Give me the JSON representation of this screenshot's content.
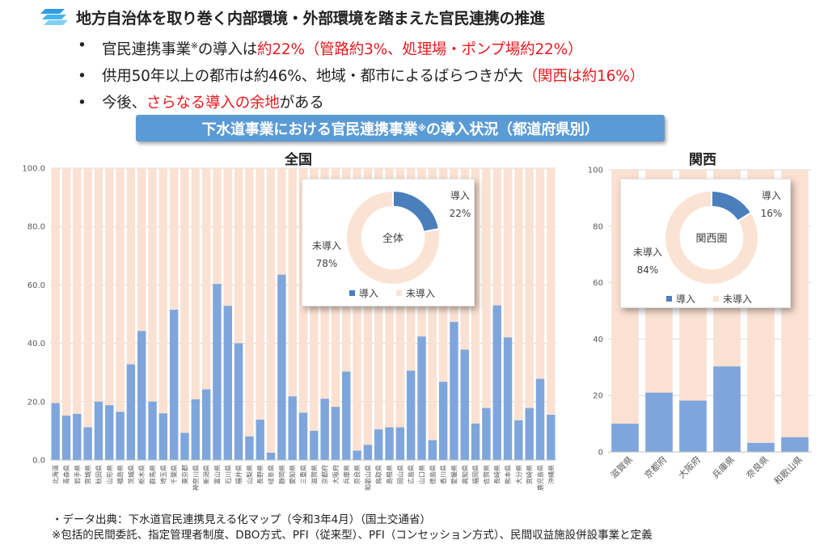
{
  "header": {
    "title": "地方自治体を取り巻く内部環境・外部環境を踏まえた官民連携の推進",
    "bullet1": {
      "a": "官民連携事業",
      "sup": "※",
      "b": "の導入は",
      "red": "約22%（管路約3%、処理場・ポンプ場約22%）"
    },
    "bullet2": {
      "a": "供用50年以上の都市は約46%、地域・都市によるばらつきが大",
      "red": "（関西は約16%）"
    },
    "bullet3": {
      "a": "今後、",
      "red": "さらなる導入の余地",
      "b": "がある"
    }
  },
  "banner": {
    "a": "下水道事業における官民連携事業",
    "sup": "※",
    "b": "の導入状況（都道府県別）"
  },
  "colors": {
    "bar": "#7ea6dc",
    "bg": "#fbe1d2",
    "donut_a": "#4a7fbb",
    "donut_b": "#fbe3d4",
    "accent_red": "#e8191e",
    "banner": "#5b9bd5"
  },
  "chart_data": [
    {
      "type": "bar",
      "title": "全国",
      "ylim": [
        0,
        100
      ],
      "yticks": [
        "0.0",
        "20.0",
        "40.0",
        "60.0",
        "80.0",
        "100.0"
      ],
      "categories": [
        "北海道",
        "青森県",
        "岩手県",
        "宮城県",
        "秋田県",
        "山形県",
        "福島県",
        "茨城県",
        "栃木県",
        "群馬県",
        "埼玉県",
        "千葉県",
        "東京都",
        "神奈川県",
        "新潟県",
        "富山県",
        "石川県",
        "福井県",
        "山梨県",
        "長野県",
        "岐阜県",
        "静岡県",
        "愛知県",
        "三重県",
        "滋賀県",
        "京都府",
        "大阪府",
        "兵庫県",
        "奈良県",
        "和歌山県",
        "鳥取県",
        "島根県",
        "岡山県",
        "広島県",
        "山口県",
        "徳島県",
        "香川県",
        "愛媛県",
        "高知県",
        "福岡県",
        "佐賀県",
        "長崎県",
        "熊本県",
        "大分県",
        "宮崎県",
        "鹿児島県",
        "沖縄県"
      ],
      "values": [
        19.5,
        15.2,
        15.8,
        11.2,
        20.0,
        18.8,
        16.5,
        32.8,
        44.2,
        20.0,
        16.0,
        51.5,
        9.3,
        20.8,
        24.2,
        60.3,
        52.8,
        40.0,
        8.1,
        13.8,
        2.5,
        63.5,
        21.8,
        16.2,
        10.0,
        21.0,
        18.2,
        30.3,
        3.2,
        5.2,
        10.5,
        11.2,
        11.2,
        30.6,
        42.3,
        6.8,
        26.8,
        47.3,
        37.8,
        12.5,
        17.8,
        53.0,
        42.0,
        13.6,
        17.8,
        27.8,
        15.5
      ],
      "inset": {
        "center": "全体",
        "labels": [
          "導入",
          "未導入"
        ],
        "values": [
          22,
          78
        ],
        "display": [
          "22%",
          "78%"
        ]
      }
    },
    {
      "type": "bar",
      "title": "関西",
      "ylim": [
        0,
        100
      ],
      "yticks": [
        "0",
        "20",
        "40",
        "60",
        "80",
        "100"
      ],
      "categories": [
        "滋賀県",
        "京都府",
        "大阪府",
        "兵庫県",
        "奈良県",
        "和歌山県"
      ],
      "values": [
        10.0,
        21.0,
        18.2,
        30.3,
        3.2,
        5.2
      ],
      "inset": {
        "center": "関西圏",
        "labels": [
          "導入",
          "未導入"
        ],
        "values": [
          16,
          84
        ],
        "display": [
          "16%",
          "84%"
        ]
      }
    }
  ],
  "footnote": {
    "line1": "・データ出典：下水道官民連携見える化マップ（令和3年4月）（国土交通省）",
    "line2": "※包括的民間委託、指定管理者制度、DBO方式、PFI（従来型）、PFI（コンセッション方式）、民間収益施設併設事業と定義"
  }
}
